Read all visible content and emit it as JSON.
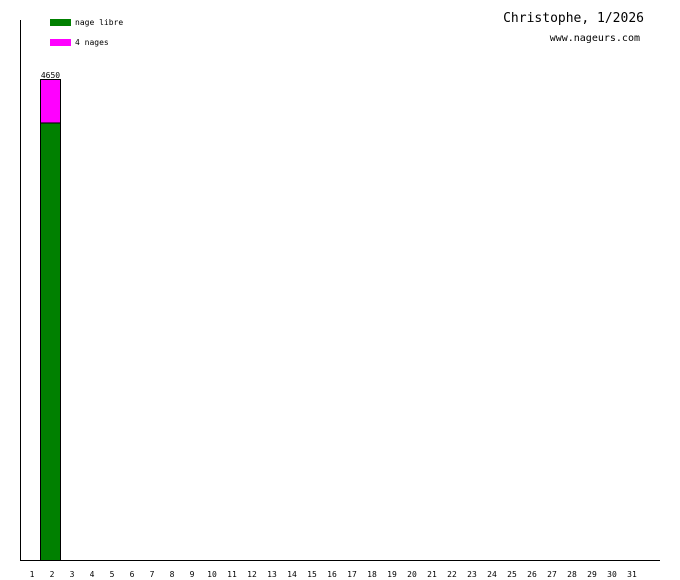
{
  "header": {
    "title": "Christophe, 1/2026",
    "subtitle": "www.nageurs.com"
  },
  "chart_data": {
    "type": "bar",
    "stacked": true,
    "categories": [
      "1",
      "2",
      "3",
      "4",
      "5",
      "6",
      "7",
      "8",
      "9",
      "10",
      "11",
      "12",
      "13",
      "14",
      "15",
      "16",
      "17",
      "18",
      "19",
      "20",
      "21",
      "22",
      "23",
      "24",
      "25",
      "26",
      "27",
      "28",
      "29",
      "30",
      "31"
    ],
    "series": [
      {
        "name": "nage libre",
        "color": "#008000",
        "values": [
          0,
          4230,
          0,
          0,
          0,
          0,
          0,
          0,
          0,
          0,
          0,
          0,
          0,
          0,
          0,
          0,
          0,
          0,
          0,
          0,
          0,
          0,
          0,
          0,
          0,
          0,
          0,
          0,
          0,
          0,
          0
        ]
      },
      {
        "name": "4 nages",
        "color": "#ff00ff",
        "values": [
          0,
          420,
          0,
          0,
          0,
          0,
          0,
          0,
          0,
          0,
          0,
          0,
          0,
          0,
          0,
          0,
          0,
          0,
          0,
          0,
          0,
          0,
          0,
          0,
          0,
          0,
          0,
          0,
          0,
          0,
          0
        ]
      }
    ],
    "totals": [
      "",
      "4650",
      "",
      "",
      "",
      "",
      "",
      "",
      "",
      "",
      "",
      "",
      "",
      "",
      "",
      "",
      "",
      "",
      "",
      "",
      "",
      "",
      "",
      "",
      "",
      "",
      "",
      "",
      "",
      "",
      ""
    ],
    "ylim": [
      0,
      4650
    ],
    "grid": false,
    "legend_position": "top-left"
  }
}
